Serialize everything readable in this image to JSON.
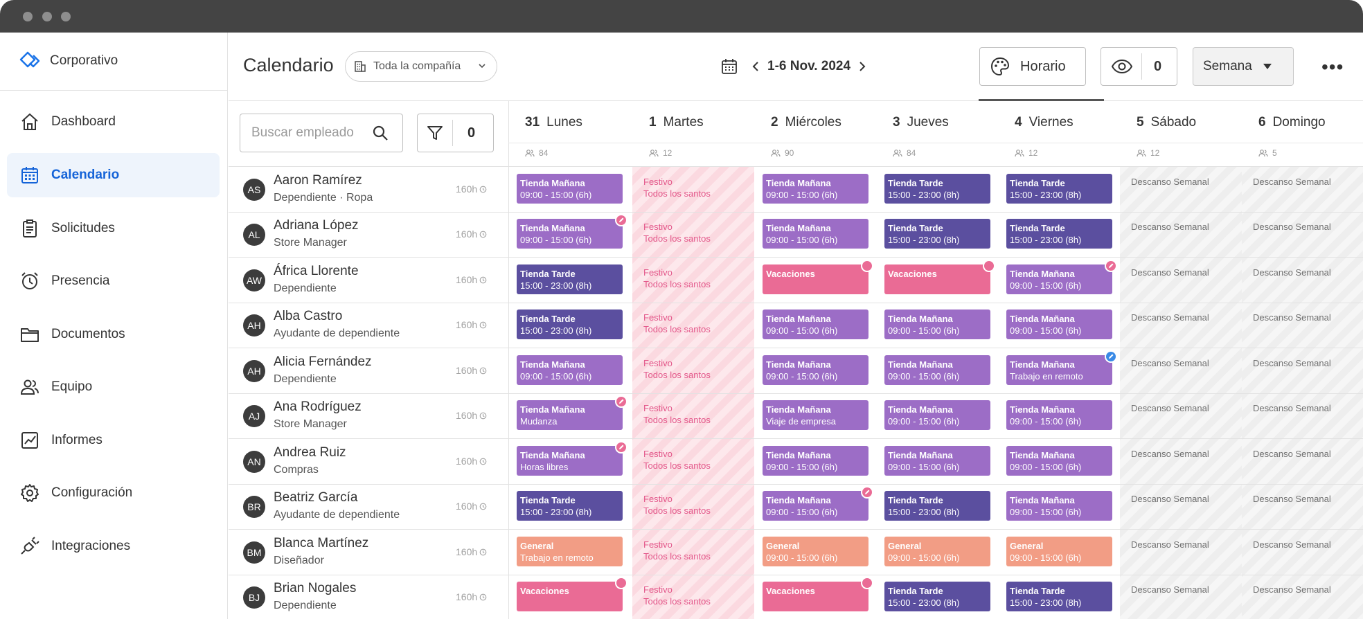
{
  "app": {
    "brand": "Corporativo"
  },
  "sidebar": {
    "items": [
      {
        "label": "Dashboard",
        "icon": "home-icon",
        "active": false
      },
      {
        "label": "Calendario",
        "icon": "calendar-icon",
        "active": true
      },
      {
        "label": "Solicitudes",
        "icon": "clipboard-icon",
        "active": false
      },
      {
        "label": "Presencia",
        "icon": "alarm-clock-icon",
        "active": false
      },
      {
        "label": "Documentos",
        "icon": "folder-icon",
        "active": false
      },
      {
        "label": "Equipo",
        "icon": "users-icon",
        "active": false
      },
      {
        "label": "Informes",
        "icon": "chart-icon",
        "active": false
      },
      {
        "label": "Configuración",
        "icon": "gear-icon",
        "active": false
      },
      {
        "label": "Integraciones",
        "icon": "plug-icon",
        "active": false
      }
    ]
  },
  "header": {
    "title": "Calendario",
    "company_filter": "Toda la compañía",
    "date_range": "1-6 Nov. 2024",
    "schedule_button": "Horario",
    "visibility_count": "0",
    "view_select": "Semana"
  },
  "toolbar": {
    "search_placeholder": "Buscar empleado",
    "filter_count": "0"
  },
  "days": [
    {
      "num": "31",
      "name": "Lunes",
      "count": "84"
    },
    {
      "num": "1",
      "name": "Martes",
      "count": "12"
    },
    {
      "num": "2",
      "name": "Miércoles",
      "count": "90"
    },
    {
      "num": "3",
      "name": "Jueves",
      "count": "84"
    },
    {
      "num": "4",
      "name": "Viernes",
      "count": "12"
    },
    {
      "num": "5",
      "name": "Sábado",
      "count": "12"
    },
    {
      "num": "6",
      "name": "Domingo",
      "count": "5"
    }
  ],
  "colors": {
    "accent": "#1463d8",
    "manana": "#9c6dc6",
    "tarde": "#5b4f9f",
    "vacaciones": "#ea6b95",
    "general": "#f29d85"
  },
  "employees": [
    {
      "initials": "AS",
      "name": "Aaron Ramírez",
      "role": "Dependiente · Ropa",
      "hours": "160h",
      "cells": [
        {
          "type": "manana",
          "l1": "Tienda Mañana",
          "l2": "09:00 - 15:00 (6h)"
        },
        {
          "type": "holiday",
          "l1": "Festivo",
          "l2": "Todos los santos"
        },
        {
          "type": "manana",
          "l1": "Tienda Mañana",
          "l2": "09:00 - 15:00 (6h)"
        },
        {
          "type": "tarde",
          "l1": "Tienda Tarde",
          "l2": "15:00 - 23:00 (8h)"
        },
        {
          "type": "tarde",
          "l1": "Tienda Tarde",
          "l2": "15:00 - 23:00 (8h)"
        },
        {
          "type": "rest",
          "l1": "Descanso Semanal"
        },
        {
          "type": "rest",
          "l1": "Descanso Semanal"
        }
      ]
    },
    {
      "initials": "AL",
      "name": "Adriana López",
      "role": "Store Manager",
      "hours": "160h",
      "cells": [
        {
          "type": "manana",
          "l1": "Tienda Mañana",
          "l2": "09:00 - 15:00 (6h)",
          "badge": "pink-edit"
        },
        {
          "type": "holiday",
          "l1": "Festivo",
          "l2": "Todos los santos"
        },
        {
          "type": "manana",
          "l1": "Tienda Mañana",
          "l2": "09:00 - 15:00 (6h)"
        },
        {
          "type": "tarde",
          "l1": "Tienda Tarde",
          "l2": "15:00 - 23:00 (8h)"
        },
        {
          "type": "tarde",
          "l1": "Tienda Tarde",
          "l2": "15:00 - 23:00 (8h)"
        },
        {
          "type": "rest",
          "l1": "Descanso Semanal"
        },
        {
          "type": "rest",
          "l1": "Descanso Semanal"
        }
      ]
    },
    {
      "initials": "AW",
      "name": "África Llorente",
      "role": "Dependiente",
      "hours": "160h",
      "cells": [
        {
          "type": "tarde",
          "l1": "Tienda Tarde",
          "l2": "15:00 - 23:00 (8h)"
        },
        {
          "type": "holiday",
          "l1": "Festivo",
          "l2": "Todos los santos"
        },
        {
          "type": "vacaciones",
          "l1": "Vacaciones",
          "badge": "pink"
        },
        {
          "type": "vacaciones",
          "l1": "Vacaciones",
          "badge": "pink"
        },
        {
          "type": "manana",
          "l1": "Tienda Mañana",
          "l2": "09:00 - 15:00 (6h)",
          "badge": "pink-edit"
        },
        {
          "type": "rest",
          "l1": "Descanso Semanal"
        },
        {
          "type": "rest",
          "l1": "Descanso Semanal"
        }
      ]
    },
    {
      "initials": "AH",
      "name": "Alba Castro",
      "role": "Ayudante de dependiente",
      "hours": "160h",
      "cells": [
        {
          "type": "tarde",
          "l1": "Tienda Tarde",
          "l2": "15:00 - 23:00 (8h)"
        },
        {
          "type": "holiday",
          "l1": "Festivo",
          "l2": "Todos los santos"
        },
        {
          "type": "manana",
          "l1": "Tienda Mañana",
          "l2": "09:00 - 15:00 (6h)"
        },
        {
          "type": "manana",
          "l1": "Tienda Mañana",
          "l2": "09:00 - 15:00 (6h)"
        },
        {
          "type": "manana",
          "l1": "Tienda Mañana",
          "l2": "09:00 - 15:00 (6h)"
        },
        {
          "type": "rest",
          "l1": "Descanso Semanal"
        },
        {
          "type": "rest",
          "l1": "Descanso Semanal"
        }
      ]
    },
    {
      "initials": "AH",
      "name": "Alicia Fernández",
      "role": "Dependiente",
      "hours": "160h",
      "cells": [
        {
          "type": "manana",
          "l1": "Tienda Mañana",
          "l2": "09:00 - 15:00 (6h)"
        },
        {
          "type": "holiday",
          "l1": "Festivo",
          "l2": "Todos los santos"
        },
        {
          "type": "manana",
          "l1": "Tienda Mañana",
          "l2": "09:00 - 15:00 (6h)"
        },
        {
          "type": "manana",
          "l1": "Tienda Mañana",
          "l2": "09:00 - 15:00 (6h)"
        },
        {
          "type": "manana",
          "l1": "Tienda Mañana",
          "l2": "Trabajo en remoto",
          "badge": "blue-edit"
        },
        {
          "type": "rest",
          "l1": "Descanso Semanal"
        },
        {
          "type": "rest",
          "l1": "Descanso Semanal"
        }
      ]
    },
    {
      "initials": "AJ",
      "name": "Ana Rodríguez",
      "role": "Store Manager",
      "hours": "160h",
      "cells": [
        {
          "type": "manana",
          "l1": "Tienda Mañana",
          "l2": "Mudanza",
          "badge": "pink-edit"
        },
        {
          "type": "holiday",
          "l1": "Festivo",
          "l2": "Todos los santos"
        },
        {
          "type": "manana",
          "l1": "Tienda Mañana",
          "l2": "Viaje de empresa"
        },
        {
          "type": "manana",
          "l1": "Tienda Mañana",
          "l2": "09:00 - 15:00 (6h)"
        },
        {
          "type": "manana",
          "l1": "Tienda Mañana",
          "l2": "09:00 - 15:00 (6h)"
        },
        {
          "type": "rest",
          "l1": "Descanso Semanal"
        },
        {
          "type": "rest",
          "l1": "Descanso Semanal"
        }
      ]
    },
    {
      "initials": "AN",
      "name": "Andrea Ruiz",
      "role": "Compras",
      "hours": "160h",
      "cells": [
        {
          "type": "manana",
          "l1": "Tienda Mañana",
          "l2": "Horas libres",
          "badge": "pink-edit"
        },
        {
          "type": "holiday",
          "l1": "Festivo",
          "l2": "Todos los santos"
        },
        {
          "type": "manana",
          "l1": "Tienda Mañana",
          "l2": "09:00 - 15:00 (6h)"
        },
        {
          "type": "manana",
          "l1": "Tienda Mañana",
          "l2": "09:00 - 15:00 (6h)"
        },
        {
          "type": "manana",
          "l1": "Tienda Mañana",
          "l2": "09:00 - 15:00 (6h)"
        },
        {
          "type": "rest",
          "l1": "Descanso Semanal"
        },
        {
          "type": "rest",
          "l1": "Descanso Semanal"
        }
      ]
    },
    {
      "initials": "BR",
      "name": "Beatriz García",
      "role": "Ayudante de dependiente",
      "hours": "160h",
      "cells": [
        {
          "type": "tarde",
          "l1": "Tienda Tarde",
          "l2": "15:00 - 23:00 (8h)"
        },
        {
          "type": "holiday",
          "l1": "Festivo",
          "l2": "Todos los santos"
        },
        {
          "type": "manana",
          "l1": "Tienda Mañana",
          "l2": "09:00 - 15:00 (6h)",
          "badge": "pink-edit"
        },
        {
          "type": "tarde",
          "l1": "Tienda Tarde",
          "l2": "15:00 - 23:00 (8h)"
        },
        {
          "type": "manana",
          "l1": "Tienda Mañana",
          "l2": "09:00 - 15:00 (6h)"
        },
        {
          "type": "rest",
          "l1": "Descanso Semanal"
        },
        {
          "type": "rest",
          "l1": "Descanso Semanal"
        }
      ]
    },
    {
      "initials": "BM",
      "name": "Blanca Martínez",
      "role": "Diseñador",
      "hours": "160h",
      "cells": [
        {
          "type": "general",
          "l1": "General",
          "l2": "Trabajo en remoto"
        },
        {
          "type": "holiday",
          "l1": "Festivo",
          "l2": "Todos los santos"
        },
        {
          "type": "general",
          "l1": "General",
          "l2": "09:00 - 15:00 (6h)"
        },
        {
          "type": "general",
          "l1": "General",
          "l2": "09:00 - 15:00 (6h)"
        },
        {
          "type": "general",
          "l1": "General",
          "l2": "09:00 - 15:00 (6h)"
        },
        {
          "type": "rest",
          "l1": "Descanso Semanal"
        },
        {
          "type": "rest",
          "l1": "Descanso Semanal"
        }
      ]
    },
    {
      "initials": "BJ",
      "name": "Brian Nogales",
      "role": "Dependiente",
      "hours": "160h",
      "cells": [
        {
          "type": "vacaciones",
          "l1": "Vacaciones",
          "badge": "pink"
        },
        {
          "type": "holiday",
          "l1": "Festivo",
          "l2": "Todos los santos"
        },
        {
          "type": "vacaciones",
          "l1": "Vacaciones",
          "badge": "pink"
        },
        {
          "type": "tarde",
          "l1": "Tienda Tarde",
          "l2": "15:00 - 23:00 (8h)"
        },
        {
          "type": "tarde",
          "l1": "Tienda Tarde",
          "l2": "15:00 - 23:00 (8h)"
        },
        {
          "type": "rest",
          "l1": "Descanso Semanal"
        },
        {
          "type": "rest",
          "l1": "Descanso Semanal"
        }
      ]
    }
  ]
}
